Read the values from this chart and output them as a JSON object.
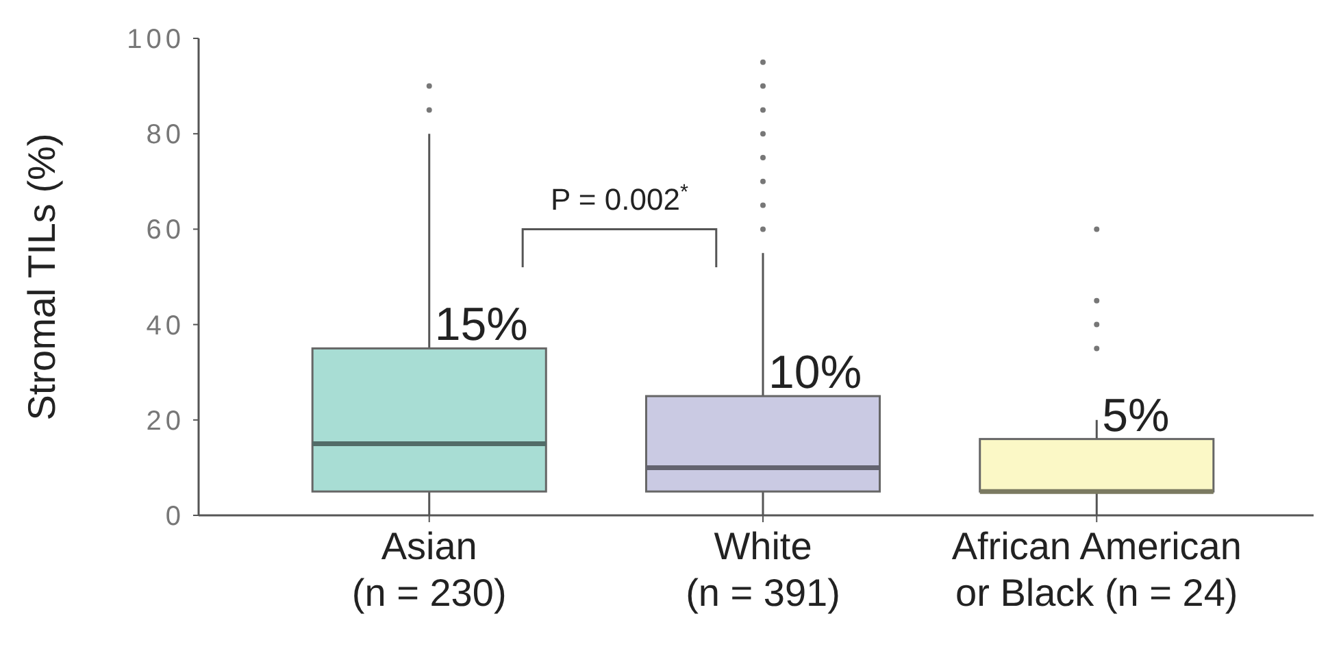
{
  "chart_data": {
    "type": "box",
    "ylabel": "Stromal TILs (%)",
    "categories": [
      "Asian\n(n = 230)",
      "White\n(n = 391)",
      "African American\nor Black (n = 24)"
    ],
    "colors": [
      "#a8ddd4",
      "#cacae3",
      "#fbf8c6"
    ],
    "boxes": [
      {
        "low": 0,
        "q1": 5,
        "median": 15,
        "q3": 35,
        "high": 80,
        "outliers": [
          85,
          90
        ]
      },
      {
        "low": 0,
        "q1": 5,
        "median": 10,
        "q3": 25,
        "high": 55,
        "outliers": [
          60,
          65,
          70,
          75,
          80,
          85,
          90,
          95
        ]
      },
      {
        "low": 0,
        "q1": 5,
        "median": 5,
        "q3": 16,
        "high": 20,
        "outliers": [
          35,
          40,
          45,
          60
        ]
      }
    ],
    "ylim": [
      0,
      100
    ],
    "yticks": [
      0,
      20,
      40,
      60,
      80,
      100
    ],
    "annotations": [
      "P = 0.002$^{*}$",
      "15%",
      "10%",
      "5%"
    ]
  }
}
